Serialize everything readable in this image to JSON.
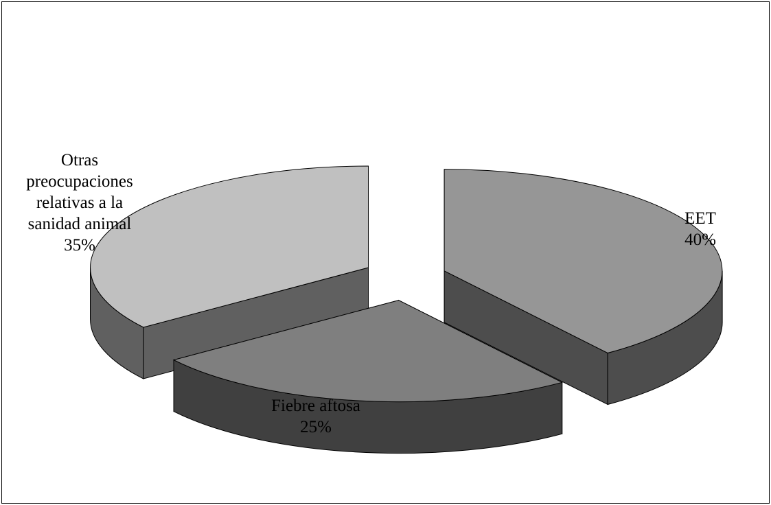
{
  "chart_data": {
    "type": "pie",
    "style": "3d-exploded",
    "title": "",
    "slices": [
      {
        "label": "EET",
        "percent_label": "40%",
        "value": 40,
        "top_color": "#969696",
        "side_color": "#4d4d4d"
      },
      {
        "label": "Fiebre aftosa",
        "percent_label": "25%",
        "value": 25,
        "top_color": "#7f7f7f",
        "side_color": "#404040"
      },
      {
        "label": "Otras preocupaciones relativas a la sanidad animal",
        "label_lines": [
          "Otras",
          "preocupaciones",
          "relativas a la",
          "sanidad animal"
        ],
        "percent_label": "35%",
        "value": 35,
        "top_color": "#c0c0c0",
        "side_color": "#606060"
      }
    ],
    "legend": "none"
  }
}
